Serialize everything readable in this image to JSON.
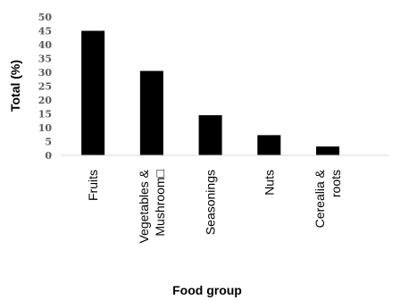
{
  "chart_data": {
    "type": "bar",
    "categories": [
      [
        "Fruits"
      ],
      [
        "Vegetables &",
        "Mushroom□"
      ],
      [
        "Seasonings"
      ],
      [
        "Nuts"
      ],
      [
        "Cerealia &",
        "roots"
      ]
    ],
    "values": [
      45,
      30.5,
      14.5,
      7.3,
      3.2
    ],
    "xlabel": "Food group",
    "ylabel": "Total (%)",
    "ylim": [
      0,
      50
    ],
    "yticks": [
      "0",
      "5",
      "10",
      "15",
      "20",
      "25",
      "30",
      "35",
      "40",
      "45",
      "50"
    ],
    "bar_color": "#000000",
    "axis_color": "#d9d9d9",
    "grid": false,
    "legend": "none"
  }
}
